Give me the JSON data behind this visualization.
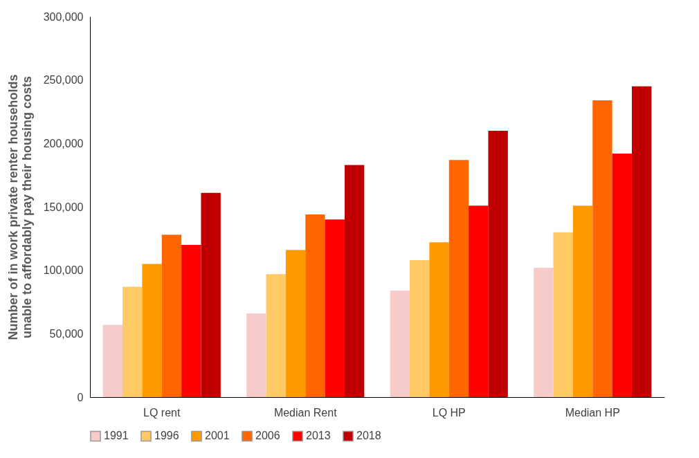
{
  "chart_data": {
    "type": "bar",
    "ylabel": "Number of in work private renter households unable to affordably pay their housing costs",
    "categories": [
      "LQ rent",
      "Median Rent",
      "LQ HP",
      "Median HP"
    ],
    "series": [
      {
        "name": "1991",
        "color": "#f8cbcb",
        "values": [
          57000,
          66000,
          84000,
          102000
        ]
      },
      {
        "name": "1996",
        "color": "#ffc966",
        "values": [
          87000,
          97000,
          108000,
          130000
        ]
      },
      {
        "name": "2001",
        "color": "#ff9900",
        "values": [
          105000,
          116000,
          122000,
          151000
        ]
      },
      {
        "name": "2006",
        "color": "#ff6600",
        "values": [
          128000,
          144000,
          187000,
          234000
        ]
      },
      {
        "name": "2013",
        "color": "#ff0000",
        "values": [
          120000,
          140000,
          151000,
          192000
        ]
      },
      {
        "name": "2018",
        "color": "#c00000",
        "values": [
          161000,
          183000,
          210000,
          245000
        ]
      }
    ],
    "ylim": [
      0,
      300000
    ],
    "yticks": [
      0,
      {
        "value": 50000,
        "label": "50,000"
      },
      {
        "value": 100000,
        "label": "100,000"
      },
      {
        "value": 150000,
        "label": "150,000"
      },
      {
        "value": 200000,
        "label": "200,000"
      },
      {
        "value": 250000,
        "label": "250,000"
      },
      {
        "value": 300000,
        "label": "300,000"
      }
    ],
    "grid": false,
    "legend": "bottom"
  }
}
